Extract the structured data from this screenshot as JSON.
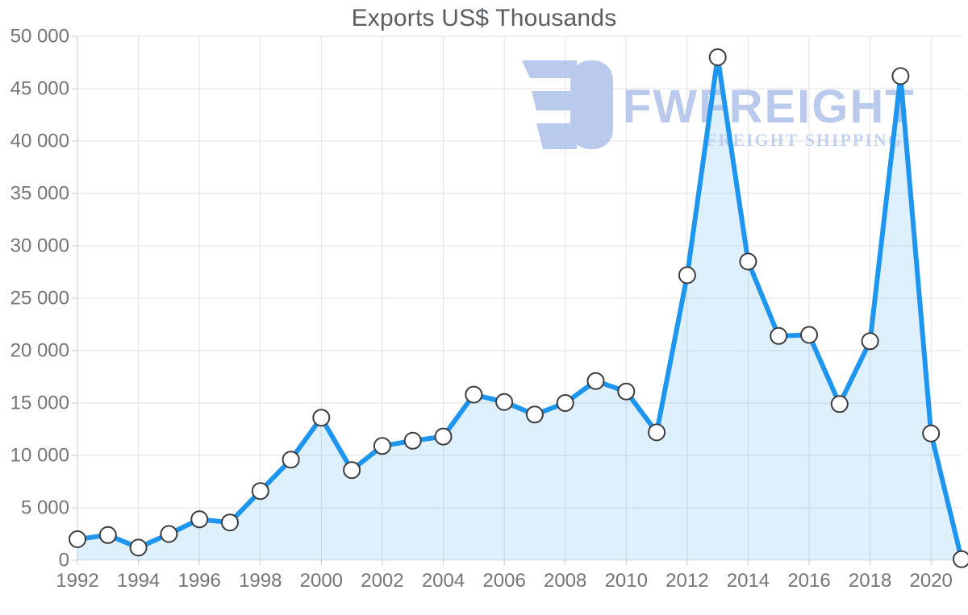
{
  "page": {
    "title": "Exports US$ Thousands"
  },
  "watermark": {
    "brand": "FWFREIGHT",
    "tagline": "FREIGHT SHIPPING",
    "icon": "fwfreight-logo-reversed-e",
    "color": "#a9bee9",
    "tagline_color": "#b7c9ef"
  },
  "chart_data": {
    "type": "area",
    "title": "Exports US$ Thousands",
    "xlabel": "",
    "ylabel": "",
    "x": [
      1992,
      1993,
      1994,
      1995,
      1996,
      1997,
      1998,
      1999,
      2000,
      2001,
      2002,
      2003,
      2004,
      2005,
      2006,
      2007,
      2008,
      2009,
      2010,
      2011,
      2012,
      2013,
      2014,
      2015,
      2016,
      2017,
      2018,
      2019,
      2020,
      2021
    ],
    "values": [
      2000,
      2400,
      1200,
      2500,
      3900,
      3600,
      6600,
      9600,
      13600,
      8600,
      10900,
      11400,
      11800,
      15800,
      15100,
      13900,
      15000,
      17100,
      16100,
      12200,
      27200,
      48000,
      28500,
      21400,
      21500,
      14900,
      20900,
      46200,
      12100,
      100
    ],
    "xlim": [
      1992,
      2021
    ],
    "ylim": [
      0,
      50000
    ],
    "ytick_step": 5000,
    "ytick_labels": [
      "0",
      "5 000",
      "10 000",
      "15 000",
      "20 000",
      "25 000",
      "30 000",
      "35 000",
      "40 000",
      "45 000",
      "50 000"
    ],
    "xtick_labels": [
      "1992",
      "1994",
      "1996",
      "1998",
      "2000",
      "2002",
      "2004",
      "2006",
      "2008",
      "2010",
      "2012",
      "2014",
      "2016",
      "2018",
      "2020"
    ],
    "grid": true,
    "legend": null,
    "colors": {
      "line": "#1e96f0",
      "fill": "rgba(30,150,240,0.14)",
      "marker_fill": "#ffffff",
      "marker_stroke": "#3c3c3c",
      "grid": "#e2e2e2",
      "axis": "#c9c9c9",
      "label": "#757575",
      "title": "#5a5e63"
    }
  }
}
